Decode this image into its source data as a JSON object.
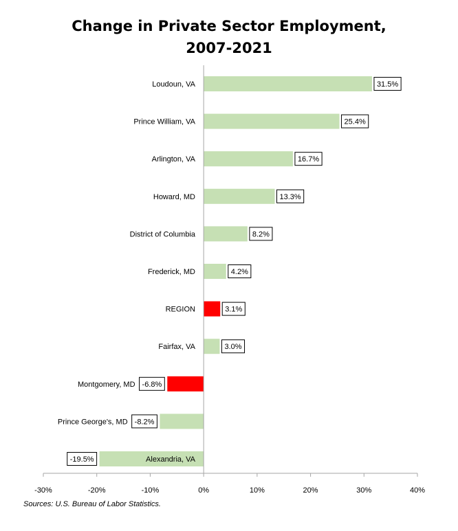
{
  "chart_data": {
    "type": "bar",
    "orientation": "horizontal",
    "title_line1": "Change in Private Sector Employment,",
    "title_line2": "2007-2021",
    "categories": [
      "Loudoun, VA",
      "Prince William, VA",
      "Arlington, VA",
      "Howard, MD",
      "District of Columbia",
      "Frederick, MD",
      "REGION",
      "Fairfax, VA",
      "Montgomery, MD",
      "Prince George's, MD",
      "Alexandria, VA"
    ],
    "values": [
      31.5,
      25.4,
      16.7,
      13.3,
      8.2,
      4.2,
      3.1,
      3.0,
      -6.8,
      -8.2,
      -19.5
    ],
    "data_labels": [
      "31.5%",
      "25.4%",
      "16.7%",
      "13.3%",
      "8.2%",
      "4.2%",
      "3.1%",
      "3.0%",
      "-6.8%",
      "-8.2%",
      "-19.5%"
    ],
    "bar_colors": [
      "#c6e0b4",
      "#c6e0b4",
      "#c6e0b4",
      "#c6e0b4",
      "#c6e0b4",
      "#c6e0b4",
      "#ff0000",
      "#c6e0b4",
      "#ff0000",
      "#c6e0b4",
      "#c6e0b4"
    ],
    "xlim": [
      -30,
      40
    ],
    "xticks": [
      -30,
      -20,
      -10,
      0,
      10,
      20,
      30,
      40
    ],
    "xtick_labels": [
      "-30%",
      "-20%",
      "-10%",
      "0%",
      "10%",
      "20%",
      "30%",
      "40%"
    ],
    "grid": false,
    "legend": "none"
  },
  "source_note": "Sources: U.S. Bureau of Labor Statistics."
}
